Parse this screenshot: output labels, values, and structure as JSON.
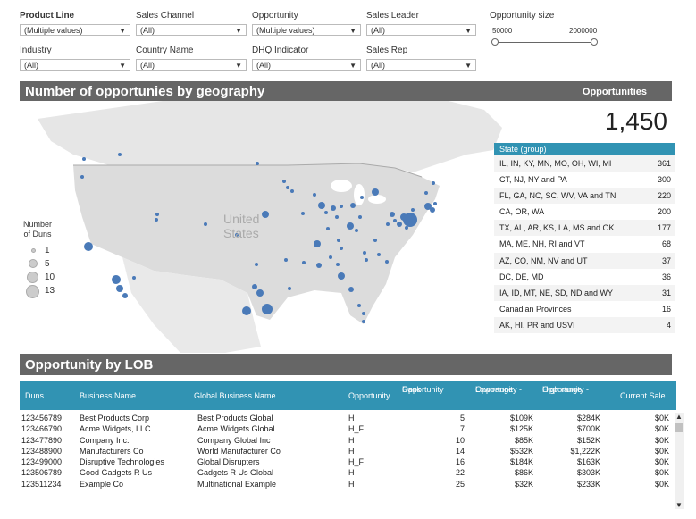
{
  "filters": [
    {
      "label": "Product Line",
      "value": "(Multiple values)"
    },
    {
      "label": "Sales Channel",
      "value": "(All)"
    },
    {
      "label": "Opportunity",
      "value": "(Multiple values)"
    },
    {
      "label": "Sales Leader",
      "value": "(All)"
    },
    {
      "label": "Industry",
      "value": "(All)"
    },
    {
      "label": "Country Name",
      "value": "(All)"
    },
    {
      "label": "DHQ Indicator",
      "value": "(All)"
    },
    {
      "label": "Sales Rep",
      "value": "(All)"
    }
  ],
  "opportunity_size": {
    "label": "Opportunity size",
    "min": "50000",
    "max": "2000000"
  },
  "geo_banner": {
    "title": "Number of opportunies by geography",
    "right_label": "Opportunities"
  },
  "total_opportunities": "1,450",
  "map": {
    "country_label_line1": "United",
    "country_label_line2": "States"
  },
  "legend": {
    "title_line1": "Number",
    "title_line2": "of Duns",
    "items": [
      "1",
      "5",
      "10",
      "13"
    ]
  },
  "state_table": {
    "header": "State  (group)",
    "rows": [
      {
        "name": "IL, IN, KY, MN, MO, OH, WI, MI",
        "value": "361"
      },
      {
        "name": "CT, NJ, NY and PA",
        "value": "300"
      },
      {
        "name": "FL, GA, NC, SC, WV, VA and TN",
        "value": "220"
      },
      {
        "name": "CA, OR, WA",
        "value": "200"
      },
      {
        "name": "TX, AL, AR, KS,  LA, MS and OK",
        "value": "177"
      },
      {
        "name": "MA, ME, NH, RI and VT",
        "value": "68"
      },
      {
        "name": "AZ, CO, NM, NV and UT",
        "value": "37"
      },
      {
        "name": "DC, DE, MD",
        "value": "36"
      },
      {
        "name": "IA, ID, MT, NE, SD, ND and WY",
        "value": "31"
      },
      {
        "name": "Canadian Provinces",
        "value": "16"
      },
      {
        "name": "AK, HI, PR and USVI",
        "value": "4"
      }
    ]
  },
  "lob_banner": {
    "title": "Opportunity by LOB"
  },
  "lob_table": {
    "headers": {
      "duns": "Duns",
      "business_name": "Business Name",
      "global_business_name": "Global Business Name",
      "opportunity": "Opportunity",
      "rank_line1": "Opportunity",
      "rank_line2": "Rank",
      "low_line1": "Opportunity -",
      "low_line2": "Low range",
      "high_line1": "Opportunity -",
      "high_line2": "High range",
      "current_sale": "Current Sale"
    },
    "rows": [
      {
        "duns": "123456789",
        "business": "Best Products Corp",
        "global": "Best Products Global",
        "opp": "H",
        "rank": "5",
        "low": "$109K",
        "high": "$284K",
        "sale": "$0K"
      },
      {
        "duns": "123466790",
        "business": "Acme Widgets, LLC",
        "global": "Acme Widgets Global",
        "opp": "H_F",
        "rank": "7",
        "low": "$125K",
        "high": "$700K",
        "sale": "$0K"
      },
      {
        "duns": "123477890",
        "business": "Company Inc.",
        "global": "Company Global Inc",
        "opp": "H",
        "rank": "10",
        "low": "$85K",
        "high": "$152K",
        "sale": "$0K"
      },
      {
        "duns": "123488900",
        "business": "Manufacturers Co",
        "global": "World Manufacturer Co",
        "opp": "H",
        "rank": "14",
        "low": "$532K",
        "high": "$1,222K",
        "sale": "$0K"
      },
      {
        "duns": "123499000",
        "business": "Disruptive Technologies",
        "global": "Global Disrupters",
        "opp": "H_F",
        "rank": "16",
        "low": "$184K",
        "high": "$163K",
        "sale": "$0K"
      },
      {
        "duns": "123506789",
        "business": "Good Gadgets R Us",
        "global": "Gadgets R Us Global",
        "opp": "H",
        "rank": "22",
        "low": "$86K",
        "high": "$303K",
        "sale": "$0K"
      },
      {
        "duns": "123511234",
        "business": "Example Co",
        "global": "Multinational Example",
        "opp": "H",
        "rank": "25",
        "low": "$32K",
        "high": "$233K",
        "sale": "$0K"
      }
    ]
  }
}
